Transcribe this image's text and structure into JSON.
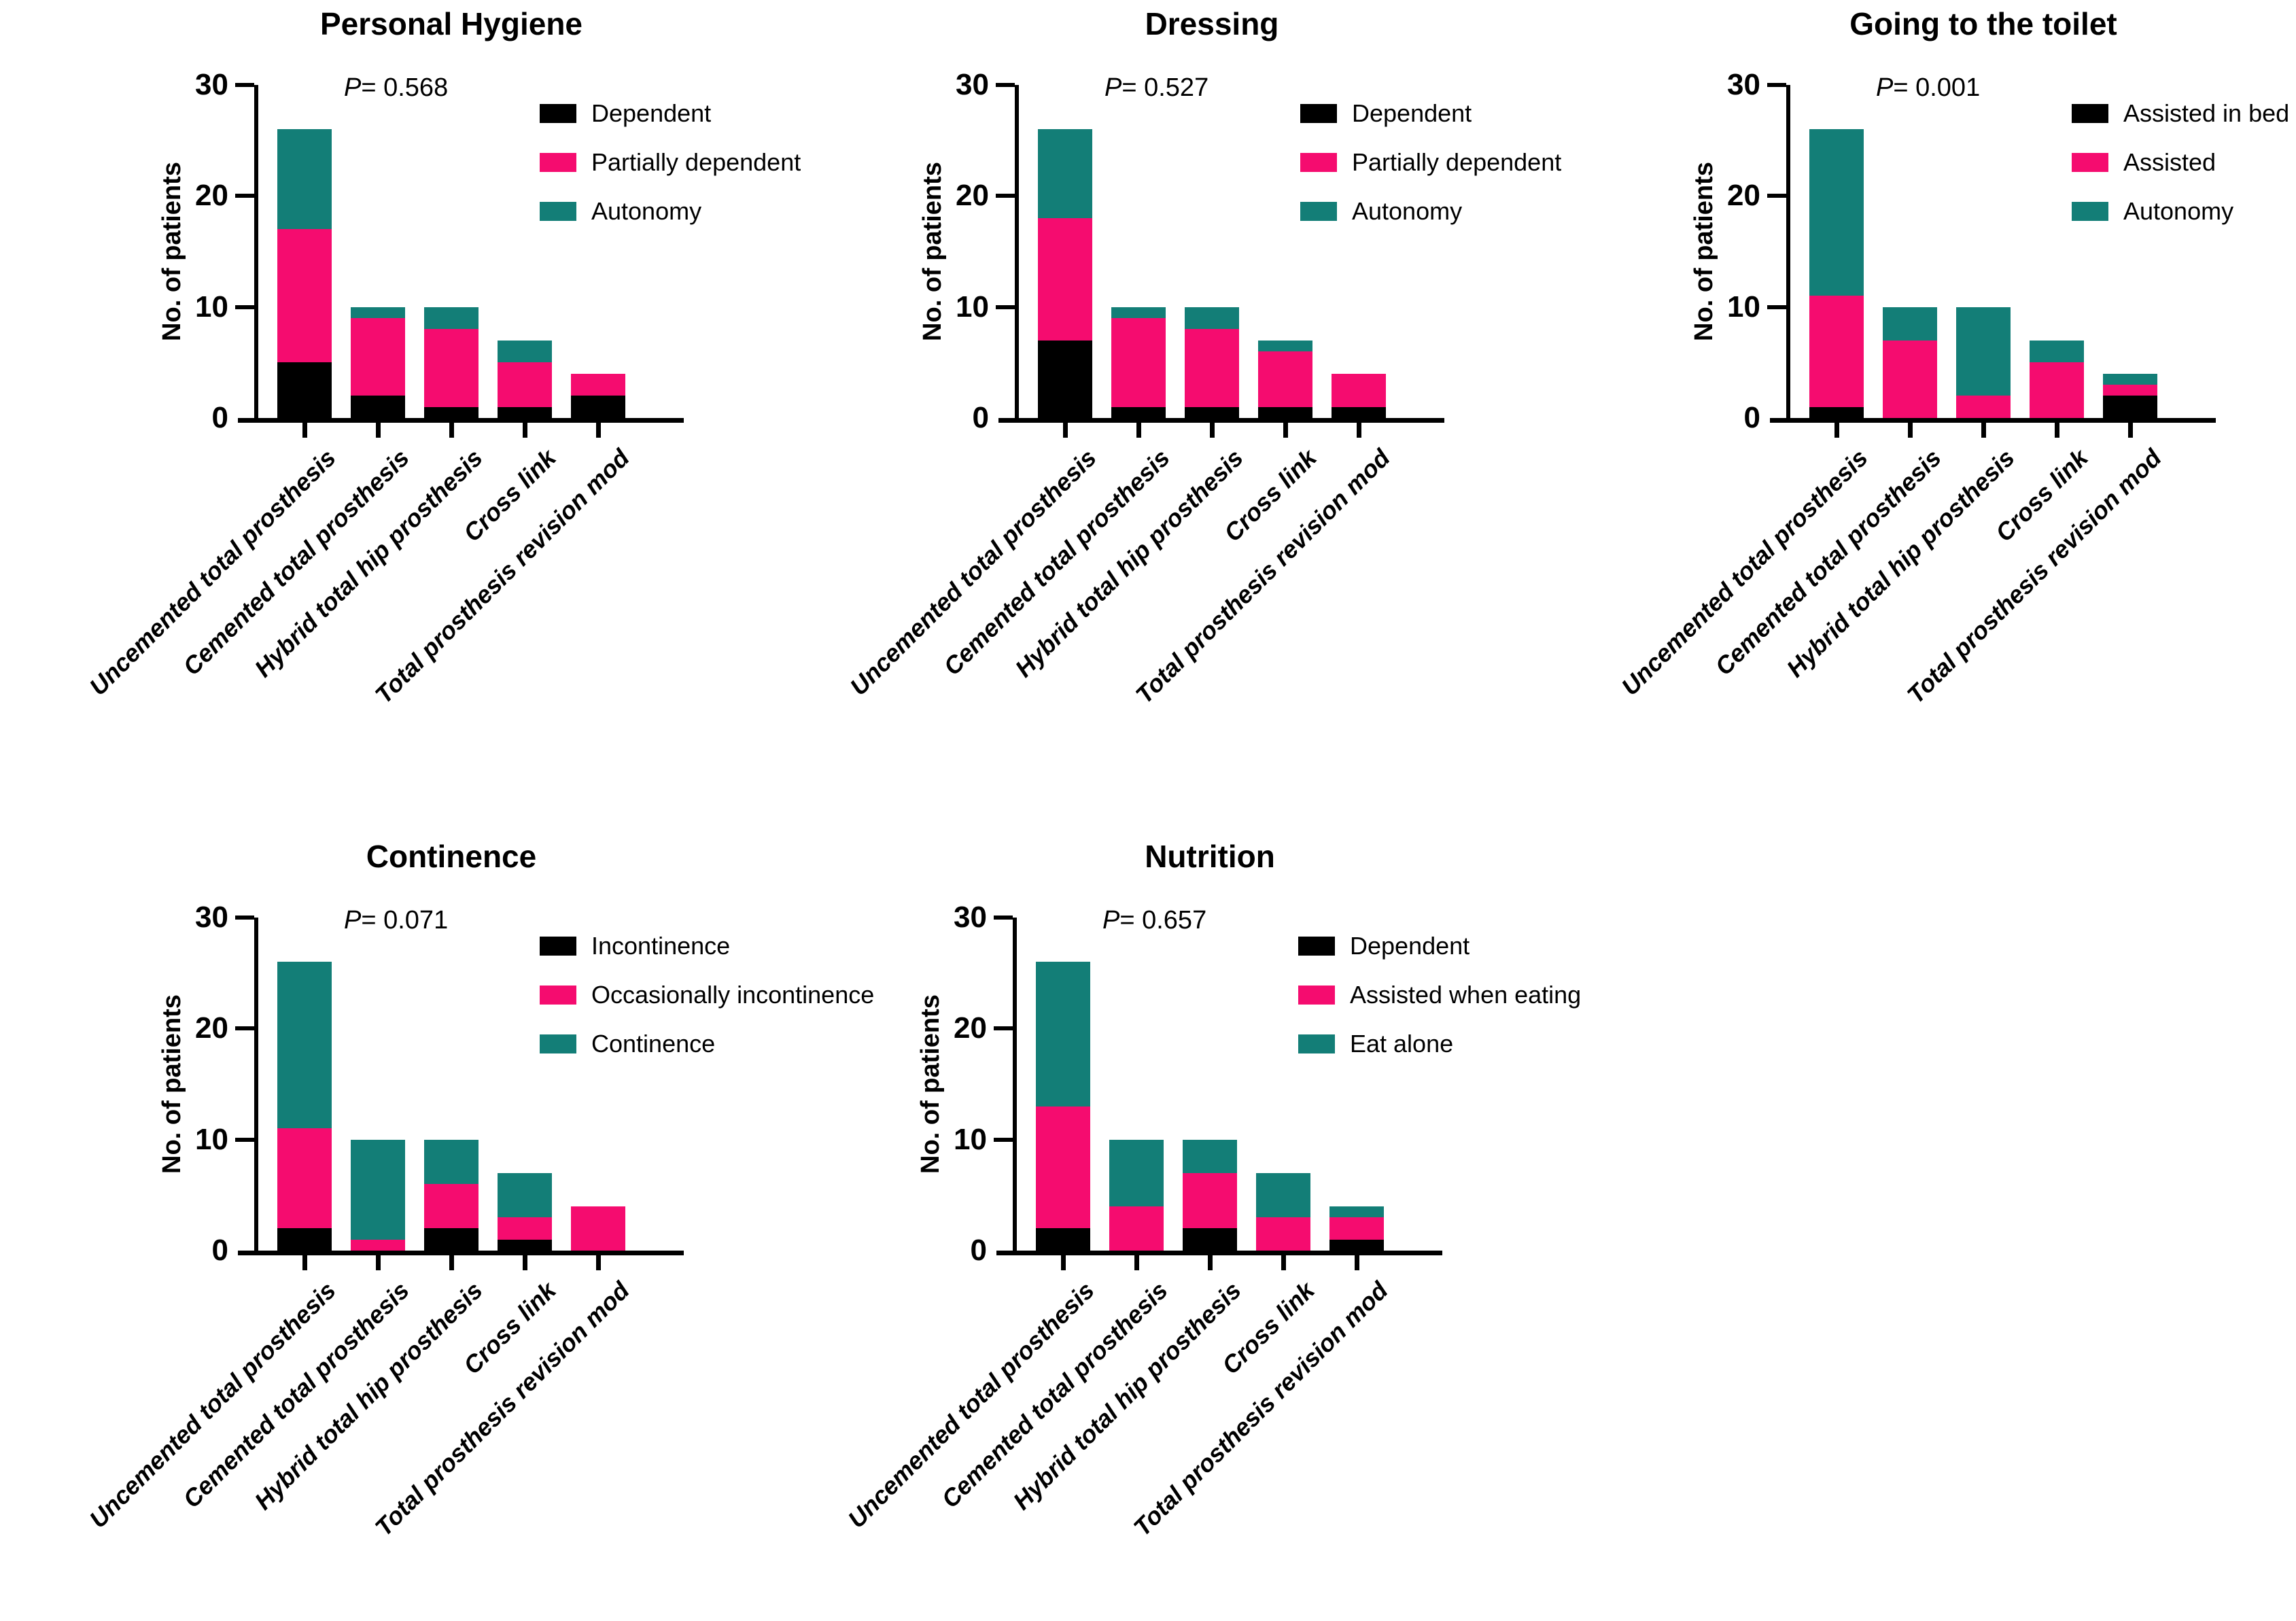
{
  "figure": {
    "background": "#ffffff",
    "colors": {
      "black": "#000000",
      "pink": "#F50C6F",
      "teal": "#137E77"
    },
    "y_ticks": [
      0,
      10,
      20,
      30
    ],
    "y_axis_label": "No. of patients"
  },
  "chart_data": [
    {
      "type": "bar",
      "stacked": true,
      "title": "Personal Hygiene",
      "p_prefix": "P",
      "p_rest": "= 0.568",
      "ylabel": "No. of patients",
      "ylim": [
        0,
        30
      ],
      "yticks": [
        0,
        10,
        20,
        30
      ],
      "grid": false,
      "legend_position": "top-right",
      "categories": [
        "Uncemented total prosthesis",
        "Cemented total prosthesis",
        "Hybrid total hip prosthesis",
        "Cross link",
        "Total prosthesis revision mod"
      ],
      "series": [
        {
          "name": "Dependent",
          "color_key": "black",
          "values": [
            5,
            2,
            1,
            1,
            2
          ]
        },
        {
          "name": "Partially dependent",
          "color_key": "pink",
          "values": [
            12,
            7,
            7,
            4,
            2
          ]
        },
        {
          "name": "Autonomy",
          "color_key": "teal",
          "values": [
            9,
            1,
            2,
            2,
            0
          ]
        }
      ]
    },
    {
      "type": "bar",
      "stacked": true,
      "title": "Dressing",
      "p_prefix": "P",
      "p_rest": "= 0.527",
      "ylabel": "No. of patients",
      "ylim": [
        0,
        30
      ],
      "yticks": [
        0,
        10,
        20,
        30
      ],
      "grid": false,
      "legend_position": "top-right",
      "categories": [
        "Uncemented total prosthesis",
        "Cemented total prosthesis",
        "Hybrid total hip prosthesis",
        "Cross link",
        "Total prosthesis revision mod"
      ],
      "series": [
        {
          "name": "Dependent",
          "color_key": "black",
          "values": [
            7,
            1,
            1,
            1,
            1
          ]
        },
        {
          "name": "Partially dependent",
          "color_key": "pink",
          "values": [
            11,
            8,
            7,
            5,
            3
          ]
        },
        {
          "name": "Autonomy",
          "color_key": "teal",
          "values": [
            8,
            1,
            2,
            1,
            0
          ]
        }
      ]
    },
    {
      "type": "bar",
      "stacked": true,
      "title": "Going to the toilet",
      "p_prefix": "P",
      "p_rest": "= 0.001",
      "ylabel": "No. of patients",
      "ylim": [
        0,
        30
      ],
      "yticks": [
        0,
        10,
        20,
        30
      ],
      "grid": false,
      "legend_position": "top-right",
      "categories": [
        "Uncemented total prosthesis",
        "Cemented total prosthesis",
        "Hybrid total hip prosthesis",
        "Cross link",
        "Total prosthesis revision mod"
      ],
      "series": [
        {
          "name": "Assisted in bed",
          "color_key": "black",
          "values": [
            1,
            0,
            0,
            0,
            2
          ]
        },
        {
          "name": "Assisted",
          "color_key": "pink",
          "values": [
            10,
            7,
            2,
            5,
            1
          ]
        },
        {
          "name": "Autonomy",
          "color_key": "teal",
          "values": [
            15,
            3,
            8,
            2,
            1
          ]
        }
      ]
    },
    {
      "type": "bar",
      "stacked": true,
      "title": "Continence",
      "p_prefix": "P",
      "p_rest": "= 0.071",
      "ylabel": "No. of patients",
      "ylim": [
        0,
        30
      ],
      "yticks": [
        0,
        10,
        20,
        30
      ],
      "grid": false,
      "legend_position": "top-right",
      "categories": [
        "Uncemented total prosthesis",
        "Cemented total prosthesis",
        "Hybrid total hip prosthesis",
        "Cross link",
        "Total prosthesis revision mod"
      ],
      "series": [
        {
          "name": "Incontinence",
          "color_key": "black",
          "values": [
            2,
            0,
            2,
            1,
            0
          ]
        },
        {
          "name": "Occasionally incontinence",
          "color_key": "pink",
          "values": [
            9,
            1,
            4,
            2,
            4
          ]
        },
        {
          "name": "Continence",
          "color_key": "teal",
          "values": [
            15,
            9,
            4,
            4,
            0
          ]
        }
      ]
    },
    {
      "type": "bar",
      "stacked": true,
      "title": "Nutrition",
      "p_prefix": "P",
      "p_rest": "= 0.657",
      "ylabel": "No. of patients",
      "ylim": [
        0,
        30
      ],
      "yticks": [
        0,
        10,
        20,
        30
      ],
      "grid": false,
      "legend_position": "top-right",
      "categories": [
        "Uncemented total prosthesis",
        "Cemented total prosthesis",
        "Hybrid total hip prosthesis",
        "Cross link",
        "Total prosthesis revision mod"
      ],
      "series": [
        {
          "name": "Dependent",
          "color_key": "black",
          "values": [
            2,
            0,
            2,
            0,
            1
          ]
        },
        {
          "name": "Assisted when eating",
          "color_key": "pink",
          "values": [
            11,
            4,
            5,
            3,
            2
          ]
        },
        {
          "name": "Eat alone",
          "color_key": "teal",
          "values": [
            13,
            6,
            3,
            4,
            1
          ]
        }
      ]
    }
  ]
}
